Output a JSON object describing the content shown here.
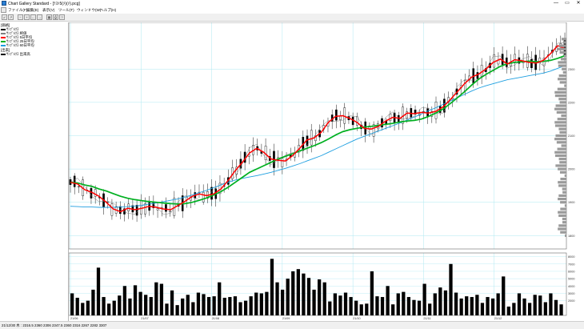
{
  "window": {
    "title": "Chart Gallery Standard - [ﾃｽﾄ5(ﾒ)(ﾒ).pcg]",
    "buttons": [
      "—",
      "▭",
      "✕"
    ]
  },
  "menu": [
    "ファイル(F)",
    "編集(E)",
    "表示(V)",
    "ツール(T)",
    "ウィンドウ(W)",
    "ヘルプ(H)"
  ],
  "toolbar": [
    "↙",
    "↗",
    "−",
    "+",
    "←",
    "→",
    "▦",
    "⎙",
    "?"
  ],
  "sidebar": {
    "section1_title": "[価格]",
    "items": [
      {
        "label": "ｻﾝﾌﾟﾙｸｽ",
        "color": "#000000"
      },
      {
        "label": "ｻﾝﾌﾟﾙｸｽ 終値",
        "color": "#808080"
      },
      {
        "label": "ｻﾝﾌﾟﾙｸｽ 5日平均",
        "color": "#ff0000"
      },
      {
        "label": "ｻﾝﾌﾟﾙｸｽ 25日平均",
        "color": "#00b020"
      },
      {
        "label": "ｻﾝﾌﾟﾙｸｽ 60日平均",
        "color": "#1e9fe0"
      }
    ],
    "section2_title": "[出来]",
    "items2": [
      {
        "label": "ｻﾝﾌﾟﾙｸｽ 出来高",
        "color": "#000000"
      }
    ]
  },
  "status": "21/12/30 木 : 2316.5 2360 2306 2347.5 2360 2316 2267 2282 3307",
  "chart_data": {
    "type": "line",
    "x_ticks": [
      "21/06",
      "21/07",
      "21/08",
      "21/09",
      "21/10",
      "21/11",
      "21/12"
    ],
    "price_ticks": [
      "2300",
      "2200",
      "2100",
      "2000",
      "1900",
      "1800"
    ],
    "volume_ticks": [
      "8000",
      "7000",
      "6000",
      "5000",
      "4000",
      "3000",
      "2000"
    ],
    "price_range": [
      1760,
      2440
    ],
    "volume_range": [
      0,
      8500
    ],
    "colors": {
      "ma5": "#ff0000",
      "ma25": "#00b020",
      "ma60": "#1e9fe0",
      "candle": "#000000",
      "close": "#808080",
      "grid": "#aee8f2"
    },
    "ma5": [
      1960,
      1955,
      1938,
      1930,
      1918,
      1900,
      1880,
      1872,
      1882,
      1878,
      1882,
      1888,
      1885,
      1880,
      1878,
      1890,
      1903,
      1918,
      1925,
      1920,
      1925,
      1940,
      1965,
      1995,
      2020,
      2048,
      2062,
      2050,
      2030,
      2026,
      2024,
      2040,
      2062,
      2087,
      2093,
      2110,
      2140,
      2158,
      2160,
      2152,
      2140,
      2122,
      2120,
      2128,
      2144,
      2155,
      2152,
      2168,
      2166,
      2170,
      2168,
      2173,
      2186,
      2208,
      2232,
      2256,
      2276,
      2285,
      2300,
      2320,
      2330,
      2315,
      2328,
      2325,
      2320,
      2318,
      2326,
      2346,
      2370,
      2362
    ],
    "ma25": [
      1960,
      1958,
      1952,
      1948,
      1940,
      1934,
      1926,
      1918,
      1912,
      1908,
      1905,
      1902,
      1900,
      1898,
      1896,
      1895,
      1896,
      1900,
      1906,
      1913,
      1922,
      1932,
      1945,
      1960,
      1975,
      1990,
      2000,
      2010,
      2020,
      2030,
      2038,
      2046,
      2054,
      2062,
      2070,
      2079,
      2090,
      2102,
      2112,
      2118,
      2122,
      2126,
      2128,
      2131,
      2134,
      2137,
      2141,
      2144,
      2146,
      2150,
      2158,
      2168,
      2180,
      2196,
      2214,
      2232,
      2252,
      2270,
      2284,
      2296,
      2308,
      2316,
      2320,
      2322,
      2324,
      2322,
      2323,
      2326,
      2332,
      2340
    ],
    "ma60": [
      1888,
      1887,
      1886,
      1886,
      1885,
      1885,
      1885,
      1886,
      1887,
      1889,
      1891,
      1895,
      1898,
      1902,
      1906,
      1910,
      1916,
      1922,
      1929,
      1936,
      1944,
      1952,
      1960,
      1967,
      1972,
      1976,
      1980,
      1985,
      1990,
      1996,
      2002,
      2009,
      2016,
      2024,
      2032,
      2040,
      2050,
      2060,
      2070,
      2080,
      2090,
      2098,
      2106,
      2114,
      2122,
      2130,
      2138,
      2147,
      2156,
      2165,
      2175,
      2184,
      2194,
      2204,
      2214,
      2224,
      2234,
      2243,
      2250,
      2256,
      2262,
      2268,
      2272,
      2276,
      2280,
      2284,
      2288,
      2294,
      2302,
      2310
    ],
    "volume": [
      3000,
      2400,
      1700,
      2000,
      3500,
      6500,
      2500,
      1600,
      2000,
      2700,
      4000,
      2300,
      4100,
      3200,
      2800,
      2500,
      4500,
      4300,
      1600,
      3400,
      1400,
      2300,
      2800,
      1800,
      3100,
      2900,
      2500,
      2600,
      4500,
      2400,
      2500,
      2600,
      1800,
      2000,
      2600,
      3100,
      3000,
      3200,
      7700,
      4500,
      3500,
      5000,
      6000,
      6300,
      5700,
      5100,
      3500,
      4900,
      4500,
      1900,
      3000,
      2700,
      3100,
      2500,
      2000,
      1500,
      1600,
      6000,
      2600,
      2500,
      4000,
      1500,
      3000,
      3200,
      2500,
      2100,
      2000,
      4300,
      1600,
      3000,
      3800,
      3400,
      7000,
      3100,
      2300,
      2600,
      2500,
      2800,
      1700,
      2500,
      2300,
      3000,
      5300,
      1200,
      1700,
      3000,
      2300,
      1700,
      2800,
      2700,
      1800,
      3000,
      2100,
      1500
    ]
  }
}
